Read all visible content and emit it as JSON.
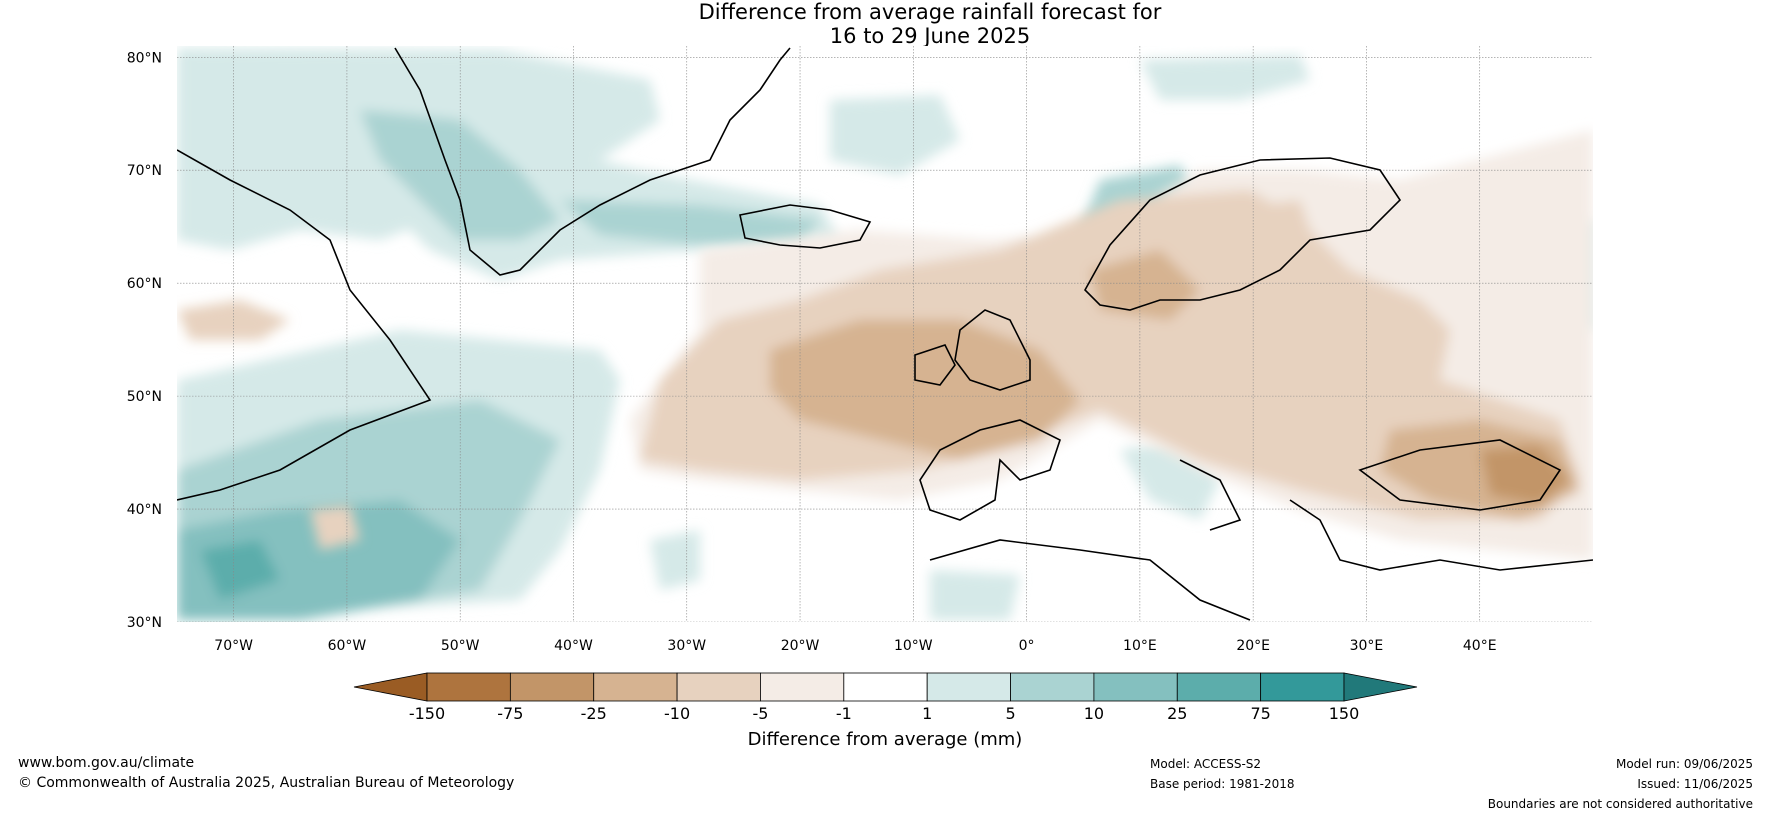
{
  "title": {
    "line1": "Difference from average rainfall forecast for",
    "line2": "16 to 29 June 2025"
  },
  "map": {
    "lat_labels": [
      "80°N",
      "70°N",
      "60°N",
      "50°N",
      "40°N",
      "30°N"
    ],
    "lon_labels": [
      "70°W",
      "60°W",
      "50°W",
      "40°W",
      "30°W",
      "20°W",
      "10°W",
      "0°",
      "10°E",
      "20°E",
      "30°E",
      "40°E"
    ],
    "lat_values": [
      80,
      70,
      60,
      50,
      40,
      30
    ],
    "lon_values": [
      -70,
      -60,
      -50,
      -40,
      -30,
      -20,
      -10,
      0,
      10,
      20,
      30,
      40
    ],
    "lon_range": [
      -75,
      50
    ],
    "lat_range": [
      30,
      81
    ]
  },
  "colorbar": {
    "title": "Difference from average (mm)",
    "tick_labels": [
      "-150",
      "-75",
      "-25",
      "-10",
      "-5",
      "-1",
      "1",
      "5",
      "10",
      "25",
      "75",
      "150"
    ],
    "colors": [
      "#9a5c24",
      "#ae743e",
      "#c29568",
      "#d6b391",
      "#e7d2bf",
      "#f4ece6",
      "#ffffff",
      "#d5e9e8",
      "#aad3d2",
      "#84c0bf",
      "#5cadab",
      "#33999a",
      "#21797a"
    ]
  },
  "footer": {
    "website": "www.bom.gov.au/climate",
    "copyright": "© Commonwealth of Australia 2025, Australian Bureau of Meteorology",
    "model": "Model: ACCESS-S2",
    "base_period": "Base period: 1981-2018",
    "model_run": "Model run: 09/06/2025",
    "issued": "Issued: 11/06/2025",
    "disclaimer": "Boundaries are not considered authoritative"
  }
}
